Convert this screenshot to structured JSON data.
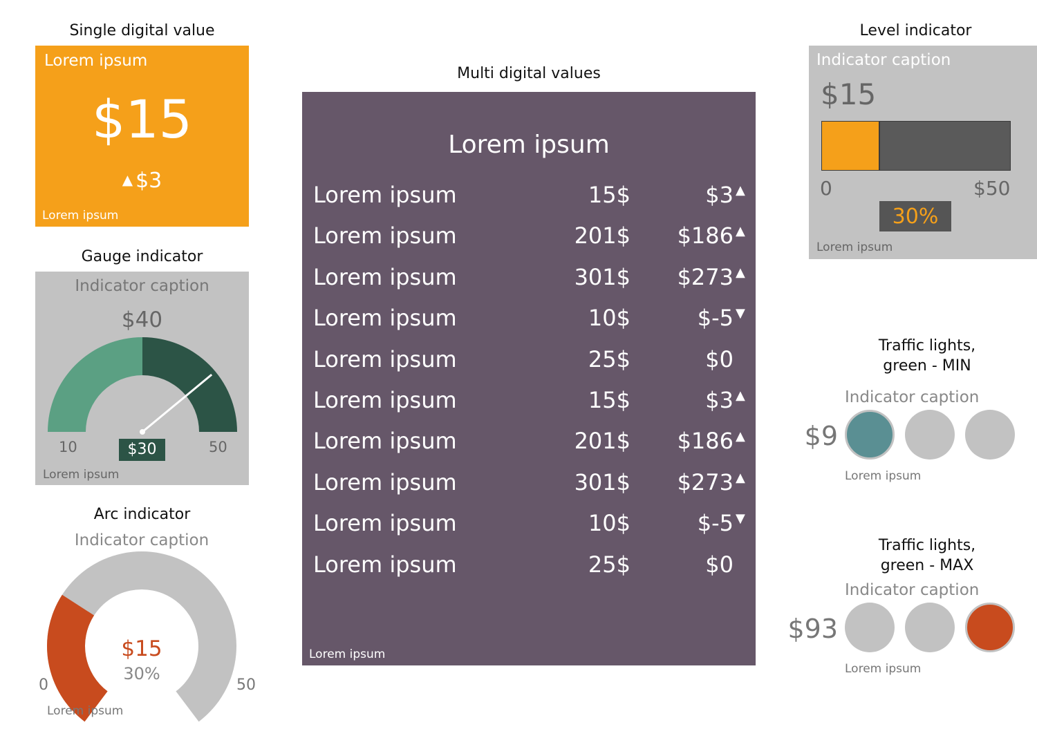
{
  "single_digital": {
    "title": "Single digital value",
    "caption": "Lorem ipsum",
    "value": "$15",
    "delta": "$3",
    "footer": "Lorem ipsum",
    "color": "#F5A01A"
  },
  "gauge": {
    "title": "Gauge indicator",
    "caption": "Indicator caption",
    "value": "$40",
    "min": "10",
    "max": "50",
    "current": "$30",
    "level": 0.5,
    "footer": "Lorem ipsum",
    "colors": {
      "low": "#5BA083",
      "high": "#2C5446"
    }
  },
  "arc": {
    "title": "Arc indicator",
    "caption": "Indicator caption",
    "value": "$15",
    "percent": "30%",
    "level": 0.3,
    "min": "0",
    "max": "50",
    "footer": "Lorem ipsum",
    "colors": {
      "fill": "#C84B1E",
      "track": "#C2C2C2"
    }
  },
  "multi_digital": {
    "title": "Multi digital values",
    "header": "Lorem ipsum",
    "rows": [
      {
        "label": "Lorem ipsum",
        "amount": "15$",
        "delta": "$3",
        "arrow": "▲"
      },
      {
        "label": "Lorem ipsum",
        "amount": "201$",
        "delta": "$186",
        "arrow": "▲"
      },
      {
        "label": "Lorem ipsum",
        "amount": "301$",
        "delta": "$273",
        "arrow": "▲"
      },
      {
        "label": "Lorem ipsum",
        "amount": "10$",
        "delta": "$-5",
        "arrow": "▼"
      },
      {
        "label": "Lorem ipsum",
        "amount": "25$",
        "delta": "$0",
        "arrow": ""
      },
      {
        "label": "Lorem ipsum",
        "amount": "15$",
        "delta": "$3",
        "arrow": "▲"
      },
      {
        "label": "Lorem ipsum",
        "amount": "201$",
        "delta": "$186",
        "arrow": "▲"
      },
      {
        "label": "Lorem ipsum",
        "amount": "301$",
        "delta": "$273",
        "arrow": "▲"
      },
      {
        "label": "Lorem ipsum",
        "amount": "10$",
        "delta": "$-5",
        "arrow": "▼"
      },
      {
        "label": "Lorem ipsum",
        "amount": "25$",
        "delta": "$0",
        "arrow": ""
      }
    ],
    "footer": "Lorem ipsum",
    "color": "#665769"
  },
  "level": {
    "title": "Level indicator",
    "caption": "Indicator caption",
    "value": "$15",
    "min": "0",
    "max": "$50",
    "percent": "30%",
    "level": 0.3,
    "footer": "Lorem ipsum"
  },
  "traffic_min": {
    "title_line1": "Traffic lights,",
    "title_line2": "green - MIN",
    "caption": "Indicator caption",
    "value": "$9",
    "active": "first",
    "footer": "Lorem ipsum"
  },
  "traffic_max": {
    "title_line1": "Traffic lights,",
    "title_line2": "green - MAX",
    "caption": "Indicator caption",
    "value": "$93",
    "active": "last",
    "footer": "Lorem ipsum"
  }
}
